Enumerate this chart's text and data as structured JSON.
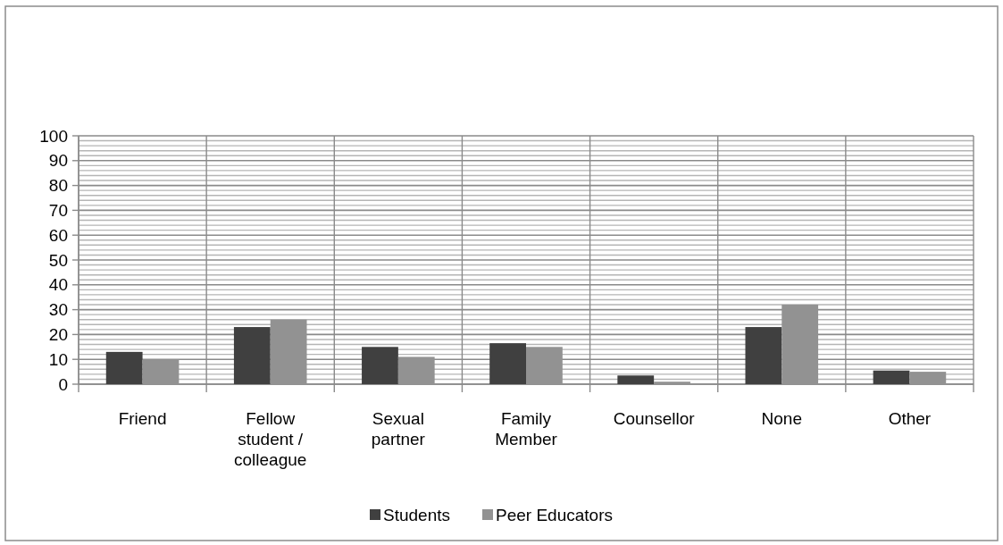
{
  "chart_data": {
    "type": "bar",
    "categories": [
      "Friend",
      "Fellow student / colleague",
      "Sexual partner",
      "Family Member",
      "Counsellor",
      "None",
      "Other"
    ],
    "series": [
      {
        "name": "Students",
        "color": "#404040",
        "values": [
          13,
          23,
          15,
          16.5,
          3.5,
          23,
          5.5
        ]
      },
      {
        "name": "Peer Educators",
        "color": "#929292",
        "values": [
          10,
          26,
          11,
          15,
          1,
          32,
          5
        ]
      }
    ],
    "ylim": [
      0,
      100
    ],
    "yticks": [
      0,
      {
        "value": 2,
        "label": null
      },
      {
        "value": 4,
        "label": null
      },
      {
        "value": 6,
        "label": null
      },
      {
        "value": 8,
        "label": null
      },
      10,
      {
        "value": 12,
        "label": null
      },
      {
        "value": 14,
        "label": null
      },
      {
        "value": 16,
        "label": null
      },
      {
        "value": 18,
        "label": null
      },
      20,
      {
        "value": 22,
        "label": null
      },
      {
        "value": 24,
        "label": null
      },
      {
        "value": 26,
        "label": null
      },
      {
        "value": 28,
        "label": null
      },
      30,
      {
        "value": 32,
        "label": null
      },
      {
        "value": 34,
        "label": null
      },
      {
        "value": 36,
        "label": null
      },
      {
        "value": 38,
        "label": null
      },
      40,
      {
        "value": 42,
        "label": null
      },
      {
        "value": 44,
        "label": null
      },
      {
        "value": 46,
        "label": null
      },
      {
        "value": 48,
        "label": null
      },
      50,
      {
        "value": 52,
        "label": null
      },
      {
        "value": 54,
        "label": null
      },
      {
        "value": 56,
        "label": null
      },
      {
        "value": 58,
        "label": null
      },
      60,
      {
        "value": 62,
        "label": null
      },
      {
        "value": 64,
        "label": null
      },
      {
        "value": 66,
        "label": null
      },
      {
        "value": 68,
        "label": null
      },
      70,
      {
        "value": 72,
        "label": null
      },
      {
        "value": 74,
        "label": null
      },
      {
        "value": 76,
        "label": null
      },
      {
        "value": 78,
        "label": null
      },
      80,
      {
        "value": 82,
        "label": null
      },
      {
        "value": 84,
        "label": null
      },
      {
        "value": 86,
        "label": null
      },
      {
        "value": 88,
        "label": null
      },
      90,
      {
        "value": 92,
        "label": null
      },
      {
        "value": 94,
        "label": null
      },
      {
        "value": 96,
        "label": null
      },
      {
        "value": 98,
        "label": null
      },
      100
    ],
    "grid": true,
    "legend": "bottom"
  }
}
